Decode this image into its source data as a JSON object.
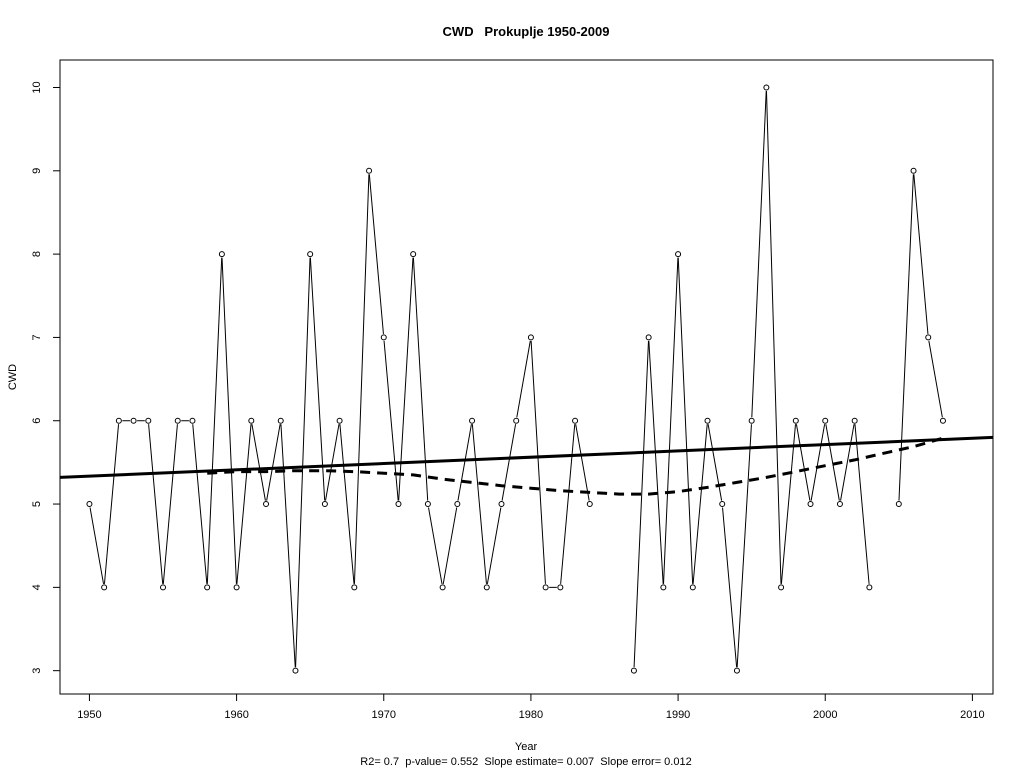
{
  "chart_data": {
    "type": "line",
    "title": "CWD   Prokuplje 1950-2009",
    "xlabel": "Year",
    "ylabel": "CWD",
    "subtitle": "R2= 0.7  p-value= 0.552  Slope estimate= 0.007  Slope error= 0.012",
    "xlim": [
      1948,
      2011.4
    ],
    "ylim": [
      2.72,
      10.33
    ],
    "x_ticks": [
      1950,
      1960,
      1970,
      1980,
      1990,
      2000,
      2010
    ],
    "y_ticks": [
      3,
      4,
      5,
      6,
      7,
      8,
      9,
      10
    ],
    "grid": false,
    "series": [
      {
        "style": "line-with-points",
        "x": [
          1950,
          1951,
          1952,
          1953,
          1954,
          1955,
          1956,
          1957,
          1958,
          1959,
          1960,
          1961,
          1962,
          1963,
          1964,
          1965,
          1966,
          1967,
          1968,
          1969,
          1970,
          1971,
          1972,
          1973,
          1974,
          1975,
          1976,
          1977,
          1978,
          1979,
          1980,
          1981,
          1982,
          1983,
          1984,
          1985,
          1986,
          1987,
          1988,
          1989,
          1990,
          1991,
          1992,
          1993,
          1994,
          1995,
          1996,
          1997,
          1998,
          1999,
          2000,
          2001,
          2002,
          2003,
          2004,
          2005,
          2006,
          2007,
          2008,
          2009
        ],
        "values": [
          5,
          4,
          6,
          6,
          6,
          4,
          6,
          6,
          4,
          8,
          4,
          6,
          5,
          6,
          3,
          8,
          5,
          6,
          4,
          9,
          7,
          5,
          8,
          5,
          4,
          5,
          6,
          4,
          5,
          6,
          7,
          4,
          4,
          6,
          5,
          null,
          null,
          3,
          7,
          4,
          8,
          4,
          6,
          5,
          3,
          6,
          10,
          4,
          6,
          5,
          6,
          5,
          6,
          4,
          null,
          5,
          9,
          7,
          6,
          null
        ]
      },
      {
        "style": "linear-trend",
        "x": [
          1948,
          2011.4
        ],
        "values": [
          5.32,
          5.8
        ]
      },
      {
        "style": "smoothed-dashed",
        "x": [
          1958,
          1960,
          1962,
          1964,
          1966,
          1968,
          1970,
          1972,
          1974,
          1976,
          1978,
          1980,
          1982,
          1984,
          1986,
          1988,
          1990,
          1992,
          1994,
          1996,
          1998,
          2000,
          2002,
          2004,
          2006,
          2008
        ],
        "values": [
          5.37,
          5.39,
          5.39,
          5.4,
          5.4,
          5.39,
          5.37,
          5.35,
          5.3,
          5.26,
          5.22,
          5.19,
          5.16,
          5.14,
          5.12,
          5.12,
          5.15,
          5.2,
          5.26,
          5.32,
          5.39,
          5.46,
          5.53,
          5.61,
          5.69,
          5.79
        ]
      }
    ]
  }
}
